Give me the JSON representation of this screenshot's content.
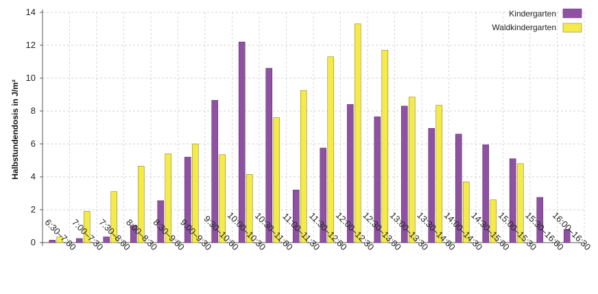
{
  "chart_data": {
    "type": "bar",
    "ylabel": "Halbstundendosis in J/m²",
    "xlabel": "",
    "ylim": [
      0,
      14
    ],
    "yticks": [
      0,
      2,
      4,
      6,
      8,
      10,
      12,
      14
    ],
    "grid": true,
    "legend_position": "top-right",
    "categories": [
      "6:30–7:00",
      "7:00–7:30",
      "7:30–8:00",
      "8:00–8:30",
      "8:30–9:00",
      "9:00–9:30",
      "9:30–10:00",
      "10:00–10:30",
      "10:30–11:00",
      "11:00–11:30",
      "11:30–12:00",
      "12:00–12:30",
      "12:30–13:00",
      "13:00–13:30",
      "13:30–14:00",
      "14:00–14:30",
      "14:30–15:00",
      "15:00–15:30",
      "15:30–16:00",
      "16:00–16:30"
    ],
    "series": [
      {
        "name": "Kindergarten",
        "color": "#8e52a1",
        "values": [
          0.15,
          0.25,
          0.35,
          1.05,
          2.55,
          5.2,
          8.65,
          12.2,
          10.6,
          3.2,
          5.75,
          8.4,
          7.65,
          8.3,
          6.95,
          6.6,
          5.95,
          5.1,
          2.75,
          0.8
        ]
      },
      {
        "name": "Waldkindergarten",
        "color": "#f4ea4a",
        "values": [
          0.35,
          1.9,
          3.1,
          4.65,
          5.4,
          6.0,
          5.35,
          4.15,
          7.6,
          9.25,
          11.3,
          13.3,
          11.7,
          8.85,
          8.35,
          3.7,
          2.6,
          4.8,
          null,
          null
        ]
      }
    ]
  }
}
